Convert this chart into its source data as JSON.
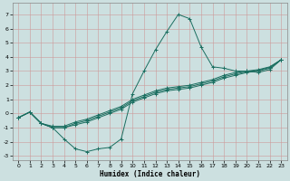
{
  "xlabel": "Humidex (Indice chaleur)",
  "bg_color": "#cce0e0",
  "grid_color": "#aacccc",
  "line_color": "#1a6e60",
  "xlim": [
    -0.5,
    23.5
  ],
  "ylim": [
    -3.3,
    7.8
  ],
  "xticks": [
    0,
    1,
    2,
    3,
    4,
    5,
    6,
    7,
    8,
    9,
    10,
    11,
    12,
    13,
    14,
    15,
    16,
    17,
    18,
    19,
    20,
    21,
    22,
    23
  ],
  "yticks": [
    -3,
    -2,
    -1,
    0,
    1,
    2,
    3,
    4,
    5,
    6,
    7
  ],
  "lines": [
    {
      "x": [
        0,
        1,
        2,
        3,
        4,
        5,
        6,
        7,
        8,
        9,
        10,
        11,
        12,
        13,
        14,
        15,
        16,
        17,
        18,
        19,
        20,
        21,
        22,
        23
      ],
      "y": [
        -0.3,
        0.1,
        -0.7,
        -1.0,
        -1.8,
        -2.5,
        -2.7,
        -2.5,
        -2.4,
        -1.8,
        1.4,
        3.0,
        4.5,
        5.8,
        7.0,
        6.7,
        4.7,
        3.3,
        3.2,
        3.0,
        3.0,
        2.9,
        3.1,
        3.8
      ]
    },
    {
      "x": [
        0,
        1,
        2,
        3,
        4,
        5,
        6,
        7,
        8,
        9,
        10,
        11,
        12,
        13,
        14,
        15,
        16,
        17,
        18,
        19,
        20,
        21,
        22,
        23
      ],
      "y": [
        -0.3,
        0.1,
        -0.7,
        -1.0,
        -1.0,
        -0.8,
        -0.6,
        -0.3,
        0.0,
        0.3,
        0.8,
        1.1,
        1.4,
        1.6,
        1.7,
        1.8,
        2.0,
        2.2,
        2.5,
        2.7,
        2.9,
        3.0,
        3.2,
        3.8
      ]
    },
    {
      "x": [
        0,
        1,
        2,
        3,
        4,
        5,
        6,
        7,
        8,
        9,
        10,
        11,
        12,
        13,
        14,
        15,
        16,
        17,
        18,
        19,
        20,
        21,
        22,
        23
      ],
      "y": [
        -0.3,
        0.1,
        -0.7,
        -1.0,
        -1.0,
        -0.7,
        -0.5,
        -0.2,
        0.1,
        0.4,
        0.9,
        1.2,
        1.5,
        1.7,
        1.8,
        1.9,
        2.1,
        2.3,
        2.6,
        2.8,
        2.95,
        3.05,
        3.25,
        3.8
      ]
    },
    {
      "x": [
        0,
        1,
        2,
        3,
        4,
        5,
        6,
        7,
        8,
        9,
        10,
        11,
        12,
        13,
        14,
        15,
        16,
        17,
        18,
        19,
        20,
        21,
        22,
        23
      ],
      "y": [
        -0.3,
        0.1,
        -0.7,
        -0.9,
        -0.9,
        -0.6,
        -0.4,
        -0.1,
        0.2,
        0.5,
        1.0,
        1.3,
        1.6,
        1.8,
        1.9,
        2.0,
        2.2,
        2.4,
        2.7,
        2.9,
        3.0,
        3.1,
        3.3,
        3.8
      ]
    }
  ]
}
